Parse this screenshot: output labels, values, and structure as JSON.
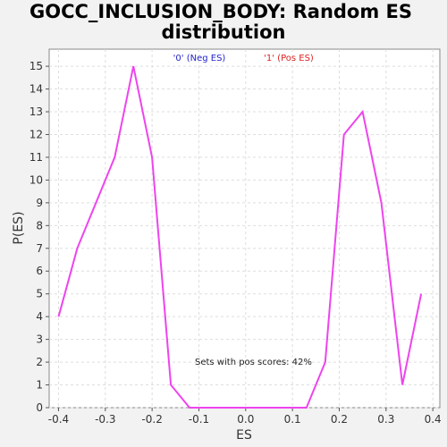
{
  "chart_data": {
    "type": "line",
    "title_lines": [
      "GOCC_INCLUSION_BODY: Random ES",
      "distribution"
    ],
    "xlabel": "ES",
    "ylabel": "P(ES)",
    "xlim": [
      -0.42,
      0.415
    ],
    "ylim": [
      0,
      15.75
    ],
    "x_ticks": [
      -0.4,
      -0.3,
      -0.2,
      -0.1,
      0.0,
      0.1,
      0.2,
      0.3,
      0.4
    ],
    "x_tick_labels": [
      "-0.4",
      "-0.3",
      "-0.2",
      "-0.1",
      "0.0",
      "0.1",
      "0.2",
      "0.3",
      "0.4"
    ],
    "y_ticks": [
      0,
      1,
      2,
      3,
      4,
      5,
      6,
      7,
      8,
      9,
      10,
      11,
      12,
      13,
      14,
      15
    ],
    "y_tick_labels": [
      "0",
      "1",
      "2",
      "3",
      "4",
      "5",
      "6",
      "7",
      "8",
      "9",
      "10",
      "11",
      "12",
      "13",
      "14",
      "15"
    ],
    "grid": true,
    "legend": [
      {
        "label": "'0' (Neg ES)",
        "color": "#2222cc"
      },
      {
        "label": "'1' (Pos ES)",
        "color": "#dd2222"
      }
    ],
    "series": [
      {
        "color": "#ee44ee",
        "x": [
          -0.4,
          -0.36,
          -0.28,
          -0.24,
          -0.2,
          -0.16,
          -0.12,
          -0.08,
          -0.04,
          0.0,
          0.05,
          0.09,
          0.13,
          0.17,
          0.21,
          0.25,
          0.29,
          0.335,
          0.375
        ],
        "y": [
          4,
          7,
          11,
          15,
          11,
          1,
          0,
          0,
          0,
          0,
          0,
          0,
          0,
          2,
          12,
          13,
          9,
          1,
          5
        ]
      }
    ],
    "annotation": "Sets with pos scores: 42%"
  }
}
